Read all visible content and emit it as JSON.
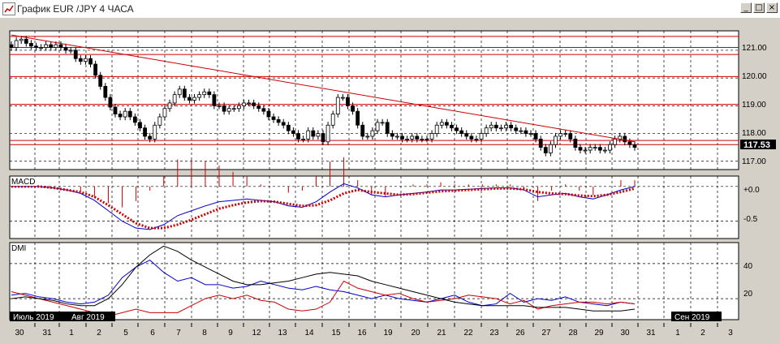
{
  "window": {
    "title": "График EUR /JPY  4 ЧАСА",
    "buttons": {
      "minimize": "_",
      "maximize": "□",
      "close": "×"
    }
  },
  "colors": {
    "bg": "#ffffff",
    "grid": "#000000",
    "hline": "#cc0000",
    "trendline": "#cc0000",
    "candle": "#000000",
    "macd": "#0000cc",
    "signal": "#cc0000",
    "dmi_plus": "#0000cc",
    "dmi_minus": "#cc0000",
    "adx": "#000000",
    "current_price_bg": "#000000",
    "current_price_fg": "#ffffff"
  },
  "price_panel": {
    "y_ticks": [
      "121.00",
      "120.00",
      "119.00",
      "118.00",
      "117.00"
    ],
    "current_price": "117.53"
  },
  "macd_panel": {
    "label": "MACD",
    "y_ticks": [
      "+0.0",
      "-0.5"
    ]
  },
  "dmi_panel": {
    "label": "DMI",
    "y_ticks": [
      "40",
      "20"
    ]
  },
  "time_axis": {
    "month_labels": [
      "Июль 2019",
      "Авг 2019",
      "Сен 2019"
    ],
    "day_labels": [
      "30",
      "31",
      "1",
      "2",
      "5",
      "6",
      "7",
      "8",
      "9",
      "12",
      "13",
      "14",
      "15",
      "16",
      "19",
      "20",
      "21",
      "22",
      "23",
      "26",
      "27",
      "28",
      "29",
      "30",
      "31",
      "1",
      "2",
      "3"
    ]
  },
  "chart_data": [
    {
      "type": "candlestick",
      "title": "EUR /JPY  4 ЧАСА",
      "ylim": [
        116.7,
        121.7
      ],
      "y_ticks": [
        121,
        120,
        119,
        118,
        117
      ],
      "horizontal_levels": [
        121.5,
        121.1,
        120.85,
        120.05,
        119.05,
        117.75,
        117.6
      ],
      "trendline": {
        "from": 121.55,
        "to": 117.7
      },
      "current_price": 117.53,
      "closes": [
        121.1,
        121.35,
        121.4,
        121.25,
        121.15,
        121.1,
        121.1,
        121.2,
        121.1,
        121.2,
        121.1,
        121.0,
        121.0,
        120.7,
        120.6,
        120.7,
        120.5,
        120.1,
        119.7,
        119.3,
        118.95,
        118.7,
        118.6,
        118.8,
        118.6,
        118.4,
        118.2,
        117.9,
        117.8,
        118.3,
        118.6,
        118.9,
        119.1,
        119.4,
        119.6,
        119.3,
        119.2,
        119.3,
        119.4,
        119.5,
        119.4,
        119.0,
        119.0,
        118.8,
        118.9,
        118.9,
        119.0,
        119.1,
        119.1,
        119.0,
        118.9,
        118.8,
        118.6,
        118.5,
        118.4,
        118.3,
        118.1,
        118.0,
        117.8,
        117.8,
        118.1,
        117.9,
        118.0,
        117.7,
        118.3,
        118.7,
        119.3,
        119.3,
        119.0,
        118.8,
        118.3,
        117.9,
        117.9,
        118.1,
        118.4,
        118.4,
        118.0,
        117.9,
        117.9,
        117.8,
        117.8,
        117.9,
        117.8,
        117.8,
        117.8,
        118.0,
        118.3,
        118.4,
        118.3,
        118.2,
        118.1,
        118.0,
        117.9,
        117.8,
        117.8,
        118.0,
        118.2,
        118.3,
        118.2,
        118.2,
        118.3,
        118.2,
        118.1,
        118.1,
        118.0,
        118.0,
        117.8,
        117.5,
        117.3,
        117.6,
        117.9,
        118.0,
        118.0,
        117.8,
        117.5,
        117.4,
        117.4,
        117.5,
        117.5,
        117.4,
        117.4,
        117.6,
        117.8,
        117.9,
        117.7,
        117.6,
        117.5
      ],
      "labels": [
        "30",
        "31",
        "1",
        "2",
        "5",
        "6",
        "7",
        "8",
        "9",
        "12",
        "13",
        "14",
        "15",
        "16",
        "19",
        "20",
        "21",
        "22",
        "23",
        "26",
        "27",
        "28",
        "29",
        "30",
        "31",
        "1",
        "2",
        "3"
      ]
    },
    {
      "type": "line",
      "title": "MACD",
      "ylim": [
        -0.75,
        0.15
      ],
      "series": [
        {
          "values": [
            0,
            0,
            0,
            -0.02,
            -0.05,
            -0.1,
            -0.2,
            -0.35,
            -0.5,
            -0.6,
            -0.62,
            -0.55,
            -0.42,
            -0.35,
            -0.28,
            -0.22,
            -0.2,
            -0.18,
            -0.2,
            -0.22,
            -0.28,
            -0.3,
            -0.22,
            -0.08,
            0.04,
            -0.02,
            -0.12,
            -0.15,
            -0.12,
            -0.1,
            -0.08,
            -0.05,
            -0.05,
            -0.04,
            -0.03,
            -0.02,
            -0.02,
            -0.05,
            -0.15,
            -0.12,
            -0.1,
            -0.15,
            -0.18,
            -0.12,
            -0.05,
            0.0
          ]
        },
        {
          "values": [
            0,
            0,
            0,
            -0.02,
            -0.05,
            -0.08,
            -0.15,
            -0.27,
            -0.4,
            -0.53,
            -0.6,
            -0.6,
            -0.55,
            -0.48,
            -0.4,
            -0.32,
            -0.27,
            -0.23,
            -0.21,
            -0.22,
            -0.25,
            -0.28,
            -0.27,
            -0.2,
            -0.1,
            -0.05,
            -0.08,
            -0.1,
            -0.12,
            -0.11,
            -0.09,
            -0.07,
            -0.06,
            -0.05,
            -0.04,
            -0.03,
            -0.03,
            -0.04,
            -0.08,
            -0.1,
            -0.11,
            -0.13,
            -0.14,
            -0.12,
            -0.08,
            -0.03
          ]
        }
      ]
    },
    {
      "type": "line",
      "title": "DMI",
      "ylim": [
        8,
        52
      ],
      "y_ticks": [
        40,
        20
      ],
      "series": [
        {
          "values": [
            22,
            23,
            21,
            20,
            18,
            17,
            18,
            22,
            32,
            38,
            42,
            35,
            30,
            32,
            28,
            28,
            26,
            27,
            30,
            28,
            26,
            25,
            27,
            25,
            24,
            22,
            20,
            22,
            20,
            19,
            18,
            20,
            22,
            18,
            16,
            17,
            23,
            18,
            20,
            19,
            21,
            18,
            17,
            16,
            18,
            17
          ]
        },
        {
          "values": [
            24,
            22,
            20,
            18,
            16,
            14,
            12,
            10,
            12,
            14,
            12,
            12,
            12,
            16,
            20,
            22,
            20,
            22,
            19,
            18,
            14,
            13,
            14,
            18,
            30,
            26,
            24,
            22,
            23,
            20,
            18,
            19,
            20,
            22,
            21,
            20,
            17,
            19,
            14,
            16,
            17,
            18,
            18,
            17,
            18,
            17
          ]
        },
        {
          "values": [
            20,
            21,
            20,
            19,
            17,
            16,
            16,
            20,
            28,
            38,
            45,
            50,
            47,
            42,
            38,
            34,
            30,
            28,
            28,
            29,
            30,
            32,
            34,
            35,
            34,
            33,
            30,
            28,
            26,
            24,
            22,
            20,
            18,
            17,
            16,
            16,
            16,
            16,
            15,
            15,
            15,
            14,
            13,
            13,
            13,
            14
          ]
        }
      ]
    }
  ]
}
